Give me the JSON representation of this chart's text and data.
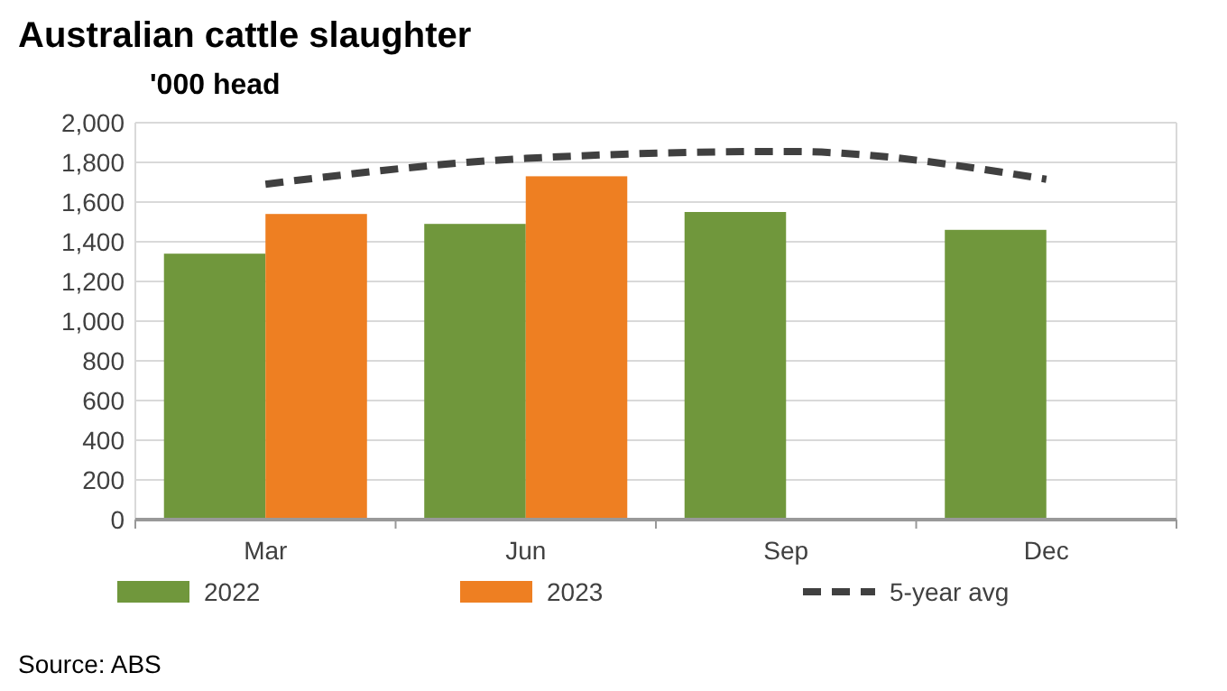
{
  "chart_data": {
    "type": "bar",
    "title": "Australian cattle slaughter",
    "ylabel": "'000 head",
    "categories": [
      "Mar",
      "Jun",
      "Sep",
      "Dec"
    ],
    "series": [
      {
        "name": "2022",
        "color": "#70973c",
        "values": [
          1340,
          1490,
          1550,
          1460
        ]
      },
      {
        "name": "2023",
        "color": "#ee7f22",
        "values": [
          1540,
          1730,
          null,
          null
        ]
      },
      {
        "name": "5-year avg",
        "type": "line",
        "color": "#404040",
        "line_style": "dashed",
        "marker": "none",
        "values": [
          1690,
          1820,
          1855,
          1715
        ]
      }
    ],
    "ylim": [
      0,
      2000
    ],
    "yticks": [
      {
        "value": 0,
        "label": "0"
      },
      {
        "value": 200,
        "label": "200"
      },
      {
        "value": 400,
        "label": "400"
      },
      {
        "value": 600,
        "label": "600"
      },
      {
        "value": 800,
        "label": "800"
      },
      {
        "value": 1000,
        "label": "1,000"
      },
      {
        "value": 1200,
        "label": "1,200"
      },
      {
        "value": 1400,
        "label": "1,400"
      },
      {
        "value": 1600,
        "label": "1,600"
      },
      {
        "value": 1800,
        "label": "1,800"
      },
      {
        "value": 2000,
        "label": "2,000"
      }
    ],
    "grid": "y",
    "legend": "bottom",
    "annotations": [
      "Source: ABS"
    ]
  }
}
